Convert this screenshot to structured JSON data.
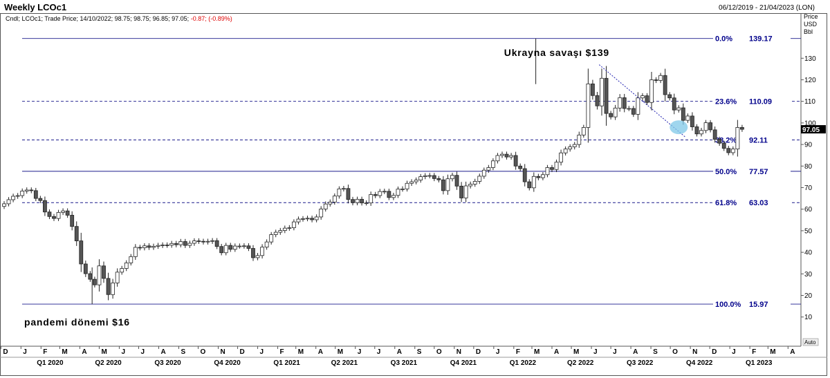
{
  "header": {
    "title": "Weekly LCOc1",
    "date_range": "06/12/2019 - 21/04/2023 (LON)",
    "info_prefix": "Cndl; LCOc1; Trade Price; 14/10/2022; 98.75; 98.75; 96.85; 97.05;",
    "info_change": "-0.87; (-0.89%)"
  },
  "price_axis_header": [
    "Price",
    "USD",
    "Bbl"
  ],
  "auto_label": "Auto",
  "colors": {
    "fib_line": "#1a1a8c",
    "fib_text": "#00008b",
    "bull": "#ffffff",
    "bear": "#555555",
    "highlight": "#7fc8e8"
  },
  "chart_data": {
    "type": "candlestick",
    "title": "Weekly LCOc1",
    "current_price": 97.05,
    "ylim": [
      10,
      140
    ],
    "y_ticks": [
      10,
      20,
      30,
      40,
      50,
      60,
      70,
      80,
      90,
      100,
      110,
      120,
      130
    ],
    "x_range": [
      "2019-12-06",
      "2023-04-21"
    ],
    "month_ticks": [
      {
        "date": "2019-12-01",
        "label": "D"
      },
      {
        "date": "2020-01-01",
        "label": "J"
      },
      {
        "date": "2020-02-01",
        "label": "F"
      },
      {
        "date": "2020-03-01",
        "label": "M"
      },
      {
        "date": "2020-04-01",
        "label": "A"
      },
      {
        "date": "2020-05-01",
        "label": "M"
      },
      {
        "date": "2020-06-01",
        "label": "J"
      },
      {
        "date": "2020-07-01",
        "label": "J"
      },
      {
        "date": "2020-08-01",
        "label": "A"
      },
      {
        "date": "2020-09-01",
        "label": "S"
      },
      {
        "date": "2020-10-01",
        "label": "O"
      },
      {
        "date": "2020-11-01",
        "label": "N"
      },
      {
        "date": "2020-12-01",
        "label": "D"
      },
      {
        "date": "2021-01-01",
        "label": "J"
      },
      {
        "date": "2021-02-01",
        "label": "F"
      },
      {
        "date": "2021-03-01",
        "label": "M"
      },
      {
        "date": "2021-04-01",
        "label": "A"
      },
      {
        "date": "2021-05-01",
        "label": "M"
      },
      {
        "date": "2021-06-01",
        "label": "J"
      },
      {
        "date": "2021-07-01",
        "label": "J"
      },
      {
        "date": "2021-08-01",
        "label": "A"
      },
      {
        "date": "2021-09-01",
        "label": "S"
      },
      {
        "date": "2021-10-01",
        "label": "O"
      },
      {
        "date": "2021-11-01",
        "label": "N"
      },
      {
        "date": "2021-12-01",
        "label": "D"
      },
      {
        "date": "2022-01-01",
        "label": "J"
      },
      {
        "date": "2022-02-01",
        "label": "F"
      },
      {
        "date": "2022-03-01",
        "label": "M"
      },
      {
        "date": "2022-04-01",
        "label": "A"
      },
      {
        "date": "2022-05-01",
        "label": "M"
      },
      {
        "date": "2022-06-01",
        "label": "J"
      },
      {
        "date": "2022-07-01",
        "label": "J"
      },
      {
        "date": "2022-08-01",
        "label": "A"
      },
      {
        "date": "2022-09-01",
        "label": "S"
      },
      {
        "date": "2022-10-01",
        "label": "O"
      },
      {
        "date": "2022-11-01",
        "label": "N"
      },
      {
        "date": "2022-12-01",
        "label": "D"
      },
      {
        "date": "2023-01-01",
        "label": "J"
      },
      {
        "date": "2023-02-01",
        "label": "F"
      },
      {
        "date": "2023-03-01",
        "label": "M"
      },
      {
        "date": "2023-04-01",
        "label": "A"
      }
    ],
    "quarter_ticks": [
      {
        "date": "2020-02-15",
        "label": "Q1 2020"
      },
      {
        "date": "2020-05-15",
        "label": "Q2 2020"
      },
      {
        "date": "2020-08-15",
        "label": "Q3 2020"
      },
      {
        "date": "2020-11-15",
        "label": "Q4 2020"
      },
      {
        "date": "2021-02-15",
        "label": "Q1 2021"
      },
      {
        "date": "2021-05-15",
        "label": "Q2 2021"
      },
      {
        "date": "2021-08-15",
        "label": "Q3 2021"
      },
      {
        "date": "2021-11-15",
        "label": "Q4 2021"
      },
      {
        "date": "2022-02-15",
        "label": "Q1 2022"
      },
      {
        "date": "2022-05-15",
        "label": "Q2 2022"
      },
      {
        "date": "2022-08-15",
        "label": "Q3 2022"
      },
      {
        "date": "2022-11-15",
        "label": "Q4 2022"
      },
      {
        "date": "2023-02-15",
        "label": "Q1 2023"
      }
    ],
    "fib_levels": [
      {
        "pct": "0.0%",
        "value": 139.17,
        "price_label": "139.17",
        "style": "solid"
      },
      {
        "pct": "23.6%",
        "value": 110.09,
        "price_label": "110.09",
        "style": "dashed"
      },
      {
        "pct": "38.2%",
        "value": 92.11,
        "price_label": "92.11",
        "style": "dashed"
      },
      {
        "pct": "50.0%",
        "value": 77.57,
        "price_label": "77.57",
        "style": "solid"
      },
      {
        "pct": "61.8%",
        "value": 63.03,
        "price_label": "63.03",
        "style": "dashed"
      },
      {
        "pct": "100.0%",
        "value": 15.97,
        "price_label": "15.97",
        "style": "solid"
      }
    ],
    "fib_start_date": "2019-12-06",
    "annotations": [
      {
        "text": "Ukrayna savaşı $139",
        "date": "2022-01-17",
        "value": 131
      },
      {
        "text": "pandemi dönemi $16",
        "date": "2020-01-06",
        "value": 6
      }
    ],
    "trendline": [
      {
        "date": "2022-06-13",
        "value": 127
      },
      {
        "date": "2022-10-24",
        "value": 93.5
      }
    ],
    "highlight": {
      "date": "2022-10-14",
      "value": 98
    },
    "weekly_close": [
      62.5,
      64.4,
      66.0,
      66.3,
      68.4,
      68.9,
      68.6,
      65.0,
      64.0,
      58.7,
      56.6,
      55.7,
      58.5,
      59.2,
      57.2,
      52.0,
      45.3,
      34.6,
      30.1,
      27.5,
      24.9,
      33.7,
      27.9,
      20.4,
      25.8,
      30.8,
      32.5,
      35.1,
      38.0,
      42.3,
      42.1,
      43.0,
      42.3,
      42.8,
      43.2,
      43.4,
      43.3,
      44.1,
      43.5,
      45.0,
      43.2,
      44.2,
      45.3,
      45.1,
      44.8,
      45.1,
      45.4,
      42.7,
      39.8,
      43.2,
      41.4,
      42.9,
      42.9,
      43.0,
      41.8,
      37.5,
      38.5,
      42.4,
      44.8,
      48.2,
      49.3,
      50.1,
      51.2,
      51.4,
      54.1,
      55.4,
      55.6,
      55.8,
      55.1,
      56.4,
      60.1,
      62.4,
      63.3,
      66.1,
      69.4,
      69.6,
      64.5,
      63.0,
      64.6,
      62.9,
      62.9,
      66.8,
      66.3,
      68.2,
      68.3,
      65.4,
      66.4,
      69.3,
      69.4,
      72.0,
      72.7,
      73.5,
      75.1,
      75.5,
      75.6,
      74.2,
      73.6,
      68.6,
      74.1,
      75.7,
      70.7,
      65.2,
      70.8,
      71.6,
      72.9,
      75.3,
      78.1,
      79.3,
      82.4,
      84.9,
      85.5,
      84.2,
      84.9,
      80.0,
      78.8,
      72.7,
      69.9,
      75.2,
      74.6,
      76.0,
      79.3,
      78.4,
      81.8,
      86.1,
      87.9,
      88.9,
      90.0,
      94.4,
      97.9,
      118.1,
      112.7,
      107.9,
      120.7,
      104.4,
      102.8,
      106.9,
      111.7,
      106.7,
      106.7,
      104.0,
      111.6,
      112.6,
      109.5,
      120.0,
      119.7,
      122.0,
      113.1,
      111.6,
      106.0,
      107.0,
      101.2,
      103.2,
      98.2,
      94.9,
      96.5,
      100.1,
      96.8,
      92.4,
      90.6,
      88.2,
      86.2,
      87.9,
      97.9,
      97.05
    ]
  }
}
